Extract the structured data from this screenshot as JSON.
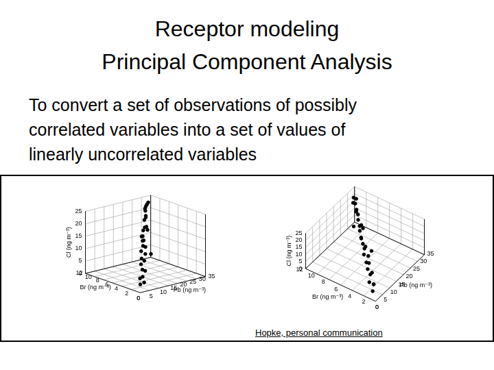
{
  "title": [
    "Receptor modeling",
    "Principal Component Analysis"
  ],
  "text": [
    "To convert a set of observations of possibly",
    "correlated variables into a set of values of",
    "linearly uncorrelated variables"
  ],
  "credit": "Hopke, personal communication",
  "chart_data": [
    {
      "type": "scatter",
      "xlabel": "Pb (ng m⁻³)",
      "ylabel": "Br (ng m⁻³)",
      "zlabel": "Cl (ng m⁻³)",
      "x": [
        3,
        5,
        6,
        8,
        9,
        10,
        11,
        12,
        13,
        14,
        15,
        16,
        17,
        18,
        19,
        20,
        21,
        22,
        23,
        24,
        25,
        26,
        27,
        28,
        29,
        30,
        31,
        7,
        18,
        24
      ],
      "y": [
        1.2,
        1.5,
        2.5,
        2.8,
        3.5,
        3.0,
        4.2,
        4.0,
        5.1,
        4.6,
        5.5,
        6.0,
        5.8,
        6.8,
        7.0,
        7.5,
        7.2,
        8.0,
        8.5,
        8.2,
        9.0,
        9.5,
        9.8,
        10.2,
        10.8,
        10.5,
        11.2,
        2.0,
        5.0,
        9.5
      ],
      "z": [
        2,
        4.5,
        3,
        6,
        7.5,
        5,
        9,
        8,
        11,
        10,
        12.5,
        14,
        11.5,
        15,
        13,
        16.5,
        18,
        17,
        19.5,
        15.5,
        20.5,
        22,
        19,
        23,
        21.5,
        24,
        22.5,
        1.5,
        9,
        12
      ],
      "xlim": [
        0,
        35
      ],
      "xticks": [
        0,
        5,
        10,
        15,
        20,
        25,
        30,
        35
      ],
      "ylim": [
        0,
        12
      ],
      "yticks": [
        0,
        2,
        4,
        6,
        8,
        10,
        12
      ],
      "zlim": [
        0,
        25
      ],
      "zticks": [
        0,
        5,
        10,
        15,
        20,
        25
      ],
      "color": "#000000",
      "marker": "circle",
      "grid": true
    },
    {
      "type": "scatter",
      "xlabel": "Pb (ng m⁻³)",
      "ylabel": "Br (ng m⁻³)",
      "zlabel": "Cl (ng m⁻³)",
      "x": [
        3,
        5,
        6,
        8,
        9,
        10,
        11,
        12,
        13,
        14,
        15,
        16,
        17,
        18,
        19,
        20,
        21,
        22,
        23,
        24,
        25,
        26,
        27,
        28,
        29,
        30,
        31,
        7,
        18,
        24
      ],
      "y": [
        1.2,
        1.5,
        2.5,
        2.8,
        3.5,
        3.0,
        4.2,
        4.0,
        5.1,
        4.6,
        5.5,
        6.0,
        5.8,
        6.8,
        7.0,
        7.5,
        7.2,
        8.0,
        8.5,
        8.2,
        9.0,
        9.5,
        9.8,
        10.2,
        10.8,
        10.5,
        11.2,
        2.0,
        5.0,
        9.5
      ],
      "z": [
        2,
        4.5,
        3,
        6,
        7.5,
        5,
        9,
        8,
        11,
        10,
        12.5,
        14,
        11.5,
        15,
        13,
        16.5,
        18,
        17,
        19.5,
        15.5,
        20.5,
        22,
        19,
        23,
        21.5,
        24,
        22.5,
        1.5,
        9,
        12
      ],
      "xlim": [
        0,
        35
      ],
      "xticks": [
        0,
        5,
        10,
        15,
        20,
        25,
        30,
        35
      ],
      "ylim": [
        0,
        12
      ],
      "yticks": [
        0,
        2,
        4,
        6,
        8,
        10,
        12
      ],
      "zlim": [
        0,
        25
      ],
      "zticks": [
        0,
        5,
        10,
        15,
        20,
        25
      ],
      "color": "#000000",
      "marker": "circle",
      "grid": true
    }
  ]
}
